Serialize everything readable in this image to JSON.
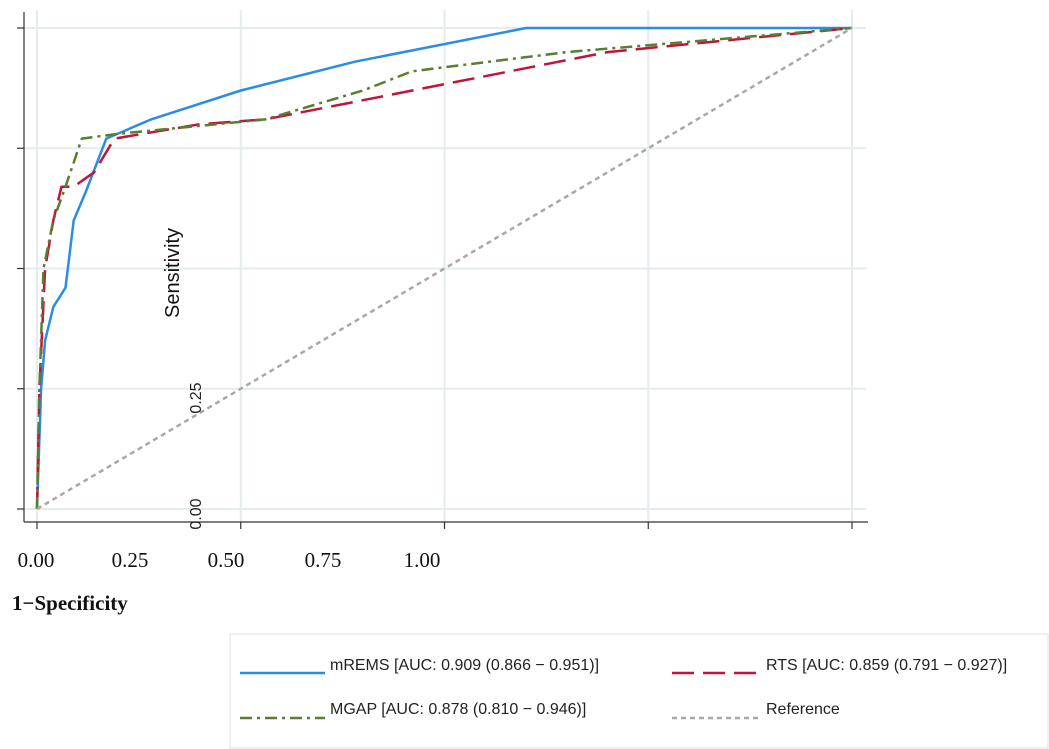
{
  "chart_data": {
    "type": "line",
    "title": "",
    "xlabel": "1−Specificity",
    "ylabel": "Sensitivity",
    "xlim": [
      0,
      1
    ],
    "ylim": [
      0,
      1
    ],
    "grid": true,
    "legend_position": "bottom",
    "x_tick_labels": [
      "0.00",
      "0.25",
      "0.50",
      "0.75",
      "1.00"
    ],
    "y_tick_labels": [
      "0.00",
      "0.25"
    ],
    "series": [
      {
        "name": "mREMS [AUC: 0.909 (0.866 − 0.951)]",
        "color": "#2b8ce6",
        "style": "solid",
        "points": [
          [
            0,
            0
          ],
          [
            0.005,
            0.25
          ],
          [
            0.01,
            0.35
          ],
          [
            0.02,
            0.42
          ],
          [
            0.035,
            0.46
          ],
          [
            0.045,
            0.6
          ],
          [
            0.06,
            0.66
          ],
          [
            0.085,
            0.77
          ],
          [
            0.14,
            0.81
          ],
          [
            0.25,
            0.87
          ],
          [
            0.39,
            0.93
          ],
          [
            0.6,
            1
          ],
          [
            1,
            1
          ]
        ]
      },
      {
        "name": "RTS [AUC: 0.859 (0.791 − 0.927)]",
        "color": "#c0143c",
        "style": "dashed",
        "points": [
          [
            0,
            0
          ],
          [
            0.003,
            0.25
          ],
          [
            0.01,
            0.5
          ],
          [
            0.02,
            0.6
          ],
          [
            0.03,
            0.67
          ],
          [
            0.045,
            0.67
          ],
          [
            0.07,
            0.7
          ],
          [
            0.095,
            0.77
          ],
          [
            0.2,
            0.8
          ],
          [
            0.28,
            0.81
          ],
          [
            0.4,
            0.85
          ],
          [
            0.7,
            0.95
          ],
          [
            1,
            1
          ]
        ]
      },
      {
        "name": "MGAP [AUC: 0.878 (0.810 − 0.946)]",
        "color": "#5a7d30",
        "style": "dashdot",
        "points": [
          [
            0,
            0
          ],
          [
            0.003,
            0.25
          ],
          [
            0.008,
            0.5
          ],
          [
            0.02,
            0.6
          ],
          [
            0.035,
            0.67
          ],
          [
            0.055,
            0.77
          ],
          [
            0.1,
            0.78
          ],
          [
            0.22,
            0.8
          ],
          [
            0.28,
            0.81
          ],
          [
            0.4,
            0.87
          ],
          [
            0.46,
            0.91
          ],
          [
            0.65,
            0.95
          ],
          [
            1,
            1
          ]
        ]
      },
      {
        "name": "Reference",
        "color": "#a8a8a8",
        "style": "dotted",
        "points": [
          [
            0,
            0
          ],
          [
            1,
            1
          ]
        ]
      }
    ]
  }
}
